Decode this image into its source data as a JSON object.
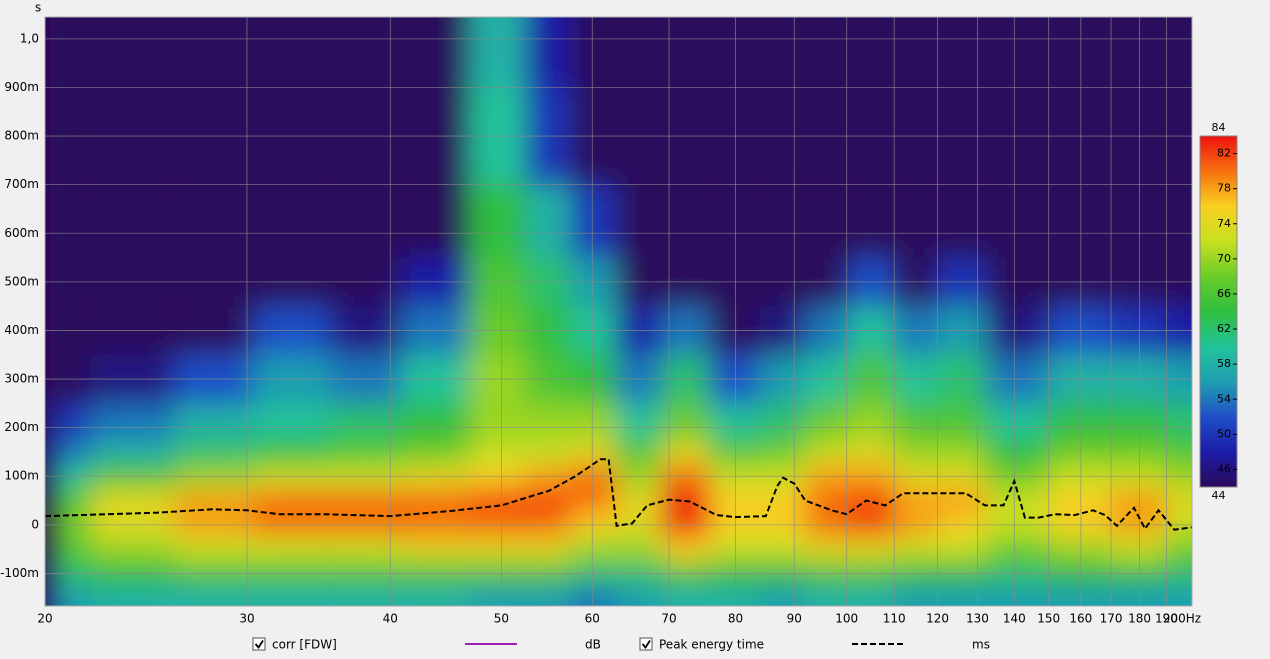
{
  "chart_data": {
    "type": "spectrogram",
    "y_unit": "s",
    "xlim": [
      20,
      200
    ],
    "log_x": true,
    "ylim": [
      -0.167,
      1.045
    ],
    "xticks": [
      20,
      30,
      40,
      50,
      60,
      70,
      80,
      90,
      100,
      {
        "value": 200,
        "label": "200Hz"
      }
    ],
    "xticks_minor": [
      110,
      120,
      130,
      140,
      150,
      160,
      170,
      180,
      190
    ],
    "yticks": [
      {
        "value": -0.1,
        "label": "-100m"
      },
      0,
      {
        "value": 0.1,
        "label": "100m"
      },
      {
        "value": 0.2,
        "label": "200m"
      },
      {
        "value": 0.3,
        "label": "300m"
      },
      {
        "value": 0.4,
        "label": "400m"
      },
      {
        "value": 0.5,
        "label": "500m"
      },
      {
        "value": 0.6,
        "label": "600m"
      },
      {
        "value": 0.7,
        "label": "700m"
      },
      {
        "value": 0.8,
        "label": "800m"
      },
      {
        "value": 0.9,
        "label": "900m"
      },
      {
        "value": 1.0,
        "label": "1,0"
      }
    ],
    "grid": true,
    "zlim": [
      44,
      84
    ],
    "zticks": [
      46,
      50,
      54,
      58,
      62,
      66,
      70,
      74,
      78,
      82
    ],
    "colormap": [
      "#2c0a5c",
      "#1c1ca8",
      "#1f4fc8",
      "#1f9fb0",
      "#22c39a",
      "#2fbf3f",
      "#6acc28",
      "#c8e020",
      "#f8d020",
      "#f87010",
      "#f01010"
    ],
    "freqs": [
      20,
      24,
      28,
      33,
      38,
      44,
      50,
      55,
      60,
      66,
      72,
      80,
      88,
      96,
      105,
      115,
      125,
      140,
      160,
      180,
      200
    ],
    "times": [
      -0.15,
      -0.1,
      -0.05,
      0,
      0.05,
      0.1,
      0.15,
      0.2,
      0.3,
      0.4,
      0.5,
      0.6,
      0.8,
      1.0
    ],
    "z": [
      [
        56,
        58,
        58,
        58,
        58,
        58,
        56,
        56,
        54,
        56,
        58,
        58,
        56,
        58,
        58,
        56,
        56,
        56,
        56,
        56,
        56
      ],
      [
        62,
        64,
        66,
        66,
        66,
        66,
        66,
        66,
        62,
        62,
        66,
        64,
        64,
        66,
        66,
        64,
        64,
        62,
        64,
        64,
        62
      ],
      [
        66,
        70,
        72,
        72,
        72,
        74,
        74,
        74,
        70,
        70,
        76,
        72,
        72,
        74,
        74,
        72,
        72,
        68,
        70,
        72,
        68
      ],
      [
        68,
        74,
        78,
        80,
        80,
        80,
        80,
        80,
        76,
        74,
        84,
        76,
        76,
        80,
        82,
        78,
        76,
        72,
        76,
        78,
        72
      ],
      [
        66,
        74,
        78,
        80,
        80,
        80,
        82,
        82,
        80,
        74,
        84,
        76,
        76,
        80,
        82,
        78,
        78,
        72,
        76,
        78,
        74
      ],
      [
        60,
        66,
        70,
        72,
        72,
        74,
        76,
        78,
        80,
        70,
        80,
        72,
        72,
        78,
        78,
        74,
        74,
        68,
        72,
        72,
        70
      ],
      [
        54,
        58,
        62,
        64,
        66,
        68,
        72,
        72,
        74,
        66,
        74,
        66,
        68,
        72,
        74,
        70,
        70,
        64,
        68,
        68,
        66
      ],
      [
        50,
        54,
        58,
        60,
        62,
        64,
        70,
        70,
        70,
        60,
        68,
        60,
        62,
        68,
        70,
        66,
        66,
        60,
        64,
        64,
        62
      ],
      [
        44,
        46,
        52,
        56,
        54,
        60,
        70,
        66,
        64,
        54,
        62,
        52,
        56,
        60,
        66,
        60,
        62,
        54,
        58,
        58,
        56
      ],
      [
        44,
        44,
        44,
        52,
        46,
        54,
        68,
        64,
        60,
        48,
        54,
        44,
        46,
        54,
        60,
        54,
        56,
        46,
        52,
        50,
        48
      ],
      [
        44,
        44,
        44,
        44,
        44,
        48,
        66,
        62,
        56,
        44,
        44,
        44,
        44,
        44,
        52,
        44,
        50,
        44,
        44,
        44,
        44
      ],
      [
        44,
        44,
        44,
        44,
        44,
        44,
        64,
        58,
        50,
        44,
        44,
        44,
        44,
        44,
        44,
        44,
        44,
        44,
        44,
        44,
        44
      ],
      [
        44,
        44,
        44,
        44,
        44,
        44,
        60,
        50,
        44,
        44,
        44,
        44,
        44,
        44,
        44,
        44,
        44,
        44,
        44,
        44,
        44
      ],
      [
        44,
        44,
        44,
        44,
        44,
        44,
        58,
        48,
        44,
        44,
        44,
        44,
        44,
        44,
        44,
        44,
        44,
        44,
        44,
        44,
        44
      ]
    ],
    "legend_items": [
      {
        "name": "corr [FDW]",
        "unit": "dB",
        "color": "#9b1fb3",
        "checked": true
      }
    ],
    "series": [
      {
        "name": "Peak energy time",
        "unit": "ms",
        "color": "#000000",
        "dashed": true,
        "checked": true,
        "x": [
          20,
          25,
          28,
          30,
          32,
          35,
          40,
          45,
          50,
          55,
          58,
          61,
          62,
          63,
          65,
          67,
          70,
          73,
          77,
          80,
          85,
          87,
          88,
          90,
          92,
          97,
          100,
          104,
          108,
          112,
          120,
          127,
          132,
          137,
          140,
          143,
          147,
          152,
          158,
          164,
          168,
          172,
          178,
          182,
          187,
          193,
          200
        ],
        "values": [
          0.018,
          0.025,
          0.032,
          0.03,
          0.022,
          0.022,
          0.018,
          0.028,
          0.04,
          0.07,
          0.1,
          0.135,
          0.135,
          -0.002,
          0.003,
          0.04,
          0.052,
          0.048,
          0.02,
          0.016,
          0.018,
          0.08,
          0.097,
          0.085,
          0.05,
          0.03,
          0.022,
          0.05,
          0.04,
          0.065,
          0.065,
          0.065,
          0.04,
          0.04,
          0.09,
          0.015,
          0.015,
          0.022,
          0.02,
          0.03,
          0.02,
          -0.002,
          0.035,
          -0.008,
          0.03,
          -0.01,
          -0.005
        ]
      }
    ]
  }
}
